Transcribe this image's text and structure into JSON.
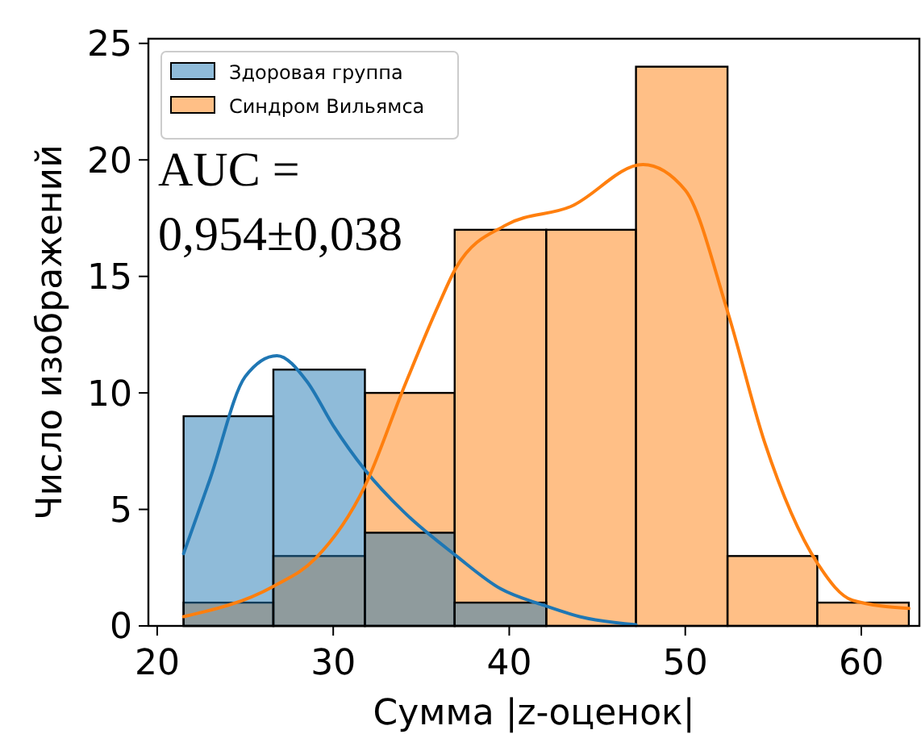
{
  "chart_data": {
    "type": "histogram",
    "xlabel": "Сумма |z-оценок|",
    "ylabel": "Число изображений",
    "bins": [
      21.5,
      26.6,
      31.8,
      36.9,
      42.1,
      47.2,
      52.4,
      57.5,
      62.7
    ],
    "series": [
      {
        "name": "Здоровая группа",
        "color": "#1f77b4",
        "values": [
          9,
          11,
          4,
          1,
          0,
          0,
          0,
          0
        ]
      },
      {
        "name": "Синдром Вильямса",
        "color": "#ff7f0e",
        "values": [
          1,
          3,
          10,
          17,
          17,
          24,
          3,
          1
        ]
      },
      {
        "type": "line",
        "color": "#1f77b4",
        "x": [
          21.5,
          23,
          25,
          26.8,
          28.5,
          30,
          31.8,
          34,
          37,
          39.5,
          41.9,
          44,
          47.2
        ],
        "values": [
          3.1,
          6.3,
          10.7,
          11.6,
          10.5,
          8.6,
          6.7,
          4.9,
          3.0,
          1.6,
          0.9,
          0.4,
          0.05
        ]
      },
      {
        "type": "line",
        "color": "#ff7f0e",
        "x": [
          21.5,
          26.6,
          29,
          31.8,
          34,
          36,
          37,
          39.8,
          43.5,
          47.6,
          50,
          52.4,
          54.5,
          57.5,
          59.5,
          62.7
        ],
        "values": [
          0.4,
          1.7,
          2.9,
          6.0,
          10.2,
          13.8,
          15.4,
          17.2,
          18.0,
          19.8,
          18.7,
          13.5,
          7.9,
          2.7,
          1.1,
          0.75
        ]
      }
    ],
    "xlim": [
      19.5,
      63.3
    ],
    "xticks": [
      20,
      30,
      40,
      50,
      60
    ],
    "ylim": [
      0,
      25.2
    ],
    "yticks": [
      0,
      5,
      10,
      15,
      20,
      25
    ],
    "legend": "top left",
    "annotations": [
      "AUC =\n0,954±0,038"
    ]
  }
}
